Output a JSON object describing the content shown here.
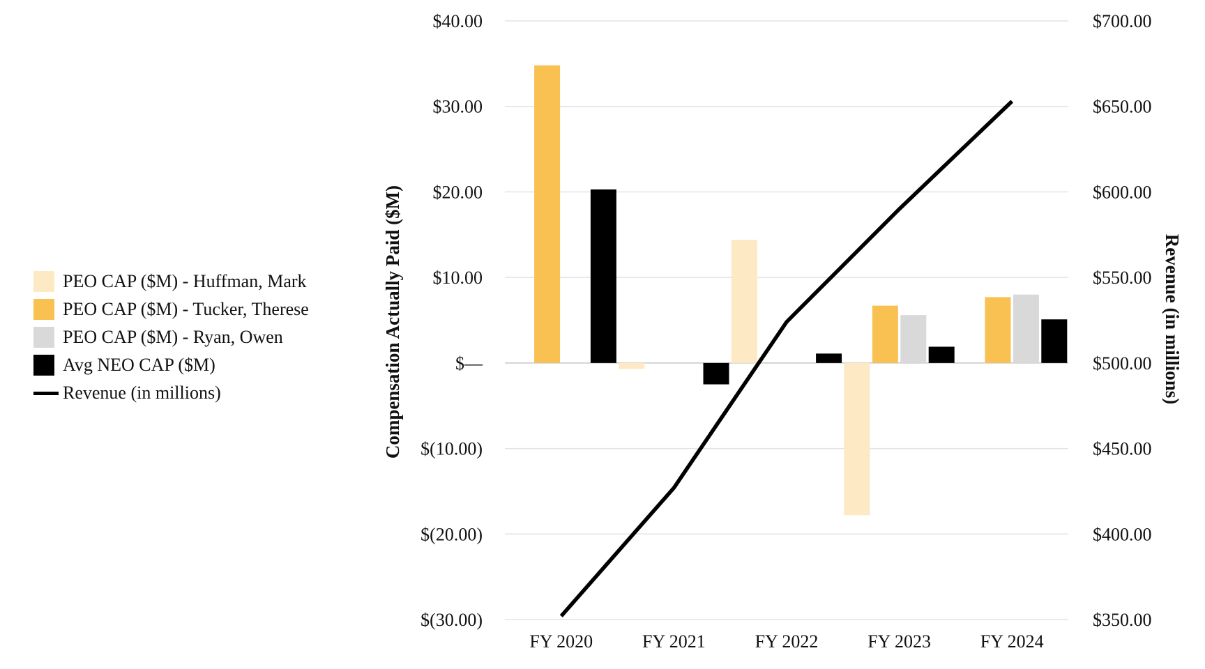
{
  "chart_data": {
    "type": "bar",
    "categories": [
      "FY 2020",
      "FY 2021",
      "FY 2022",
      "FY 2023",
      "FY 2024"
    ],
    "ylabel": "Compensation Actually Paid ($M)",
    "y2label": "Revenue (in millions)",
    "ylim": [
      -30,
      40
    ],
    "y2lim": [
      350,
      700
    ],
    "yticks": [
      {
        "value": 40,
        "label": "$40.00"
      },
      {
        "value": 30,
        "label": "$30.00"
      },
      {
        "value": 20,
        "label": "$20.00"
      },
      {
        "value": 10,
        "label": "$10.00"
      },
      {
        "value": 0,
        "label": "$—"
      },
      {
        "value": -10,
        "label": "$(10.00)"
      },
      {
        "value": -20,
        "label": "$(20.00)"
      },
      {
        "value": -30,
        "label": "$(30.00)"
      }
    ],
    "y2ticks": [
      {
        "value": 700,
        "label": "$700.00"
      },
      {
        "value": 650,
        "label": "$650.00"
      },
      {
        "value": 600,
        "label": "$600.00"
      },
      {
        "value": 550,
        "label": "$550.00"
      },
      {
        "value": 500,
        "label": "$500.00"
      },
      {
        "value": 450,
        "label": "$450.00"
      },
      {
        "value": 400,
        "label": "$400.00"
      },
      {
        "value": 350,
        "label": "$350.00"
      }
    ],
    "grid": true,
    "legend_position": "left",
    "series": [
      {
        "name": "PEO CAP ($M) - Huffman, Mark",
        "color": "#fde9c4",
        "values": [
          null,
          -0.7,
          14.4,
          -17.8,
          null
        ]
      },
      {
        "name": "PEO CAP ($M) - Tucker, Therese",
        "color": "#f8c152",
        "values": [
          34.8,
          null,
          null,
          6.7,
          7.7
        ]
      },
      {
        "name": "PEO CAP ($M) - Ryan, Owen",
        "color": "#d9d9d9",
        "values": [
          null,
          null,
          null,
          5.6,
          8.0
        ]
      },
      {
        "name": "Avg NEO CAP ($M)",
        "color": "#000000",
        "values": [
          20.3,
          -2.5,
          1.1,
          1.9,
          5.1
        ]
      }
    ],
    "line_series": {
      "name": "Revenue (in millions)",
      "color": "#000000",
      "axis": "right",
      "values": [
        352,
        427,
        524,
        590,
        653
      ]
    }
  }
}
